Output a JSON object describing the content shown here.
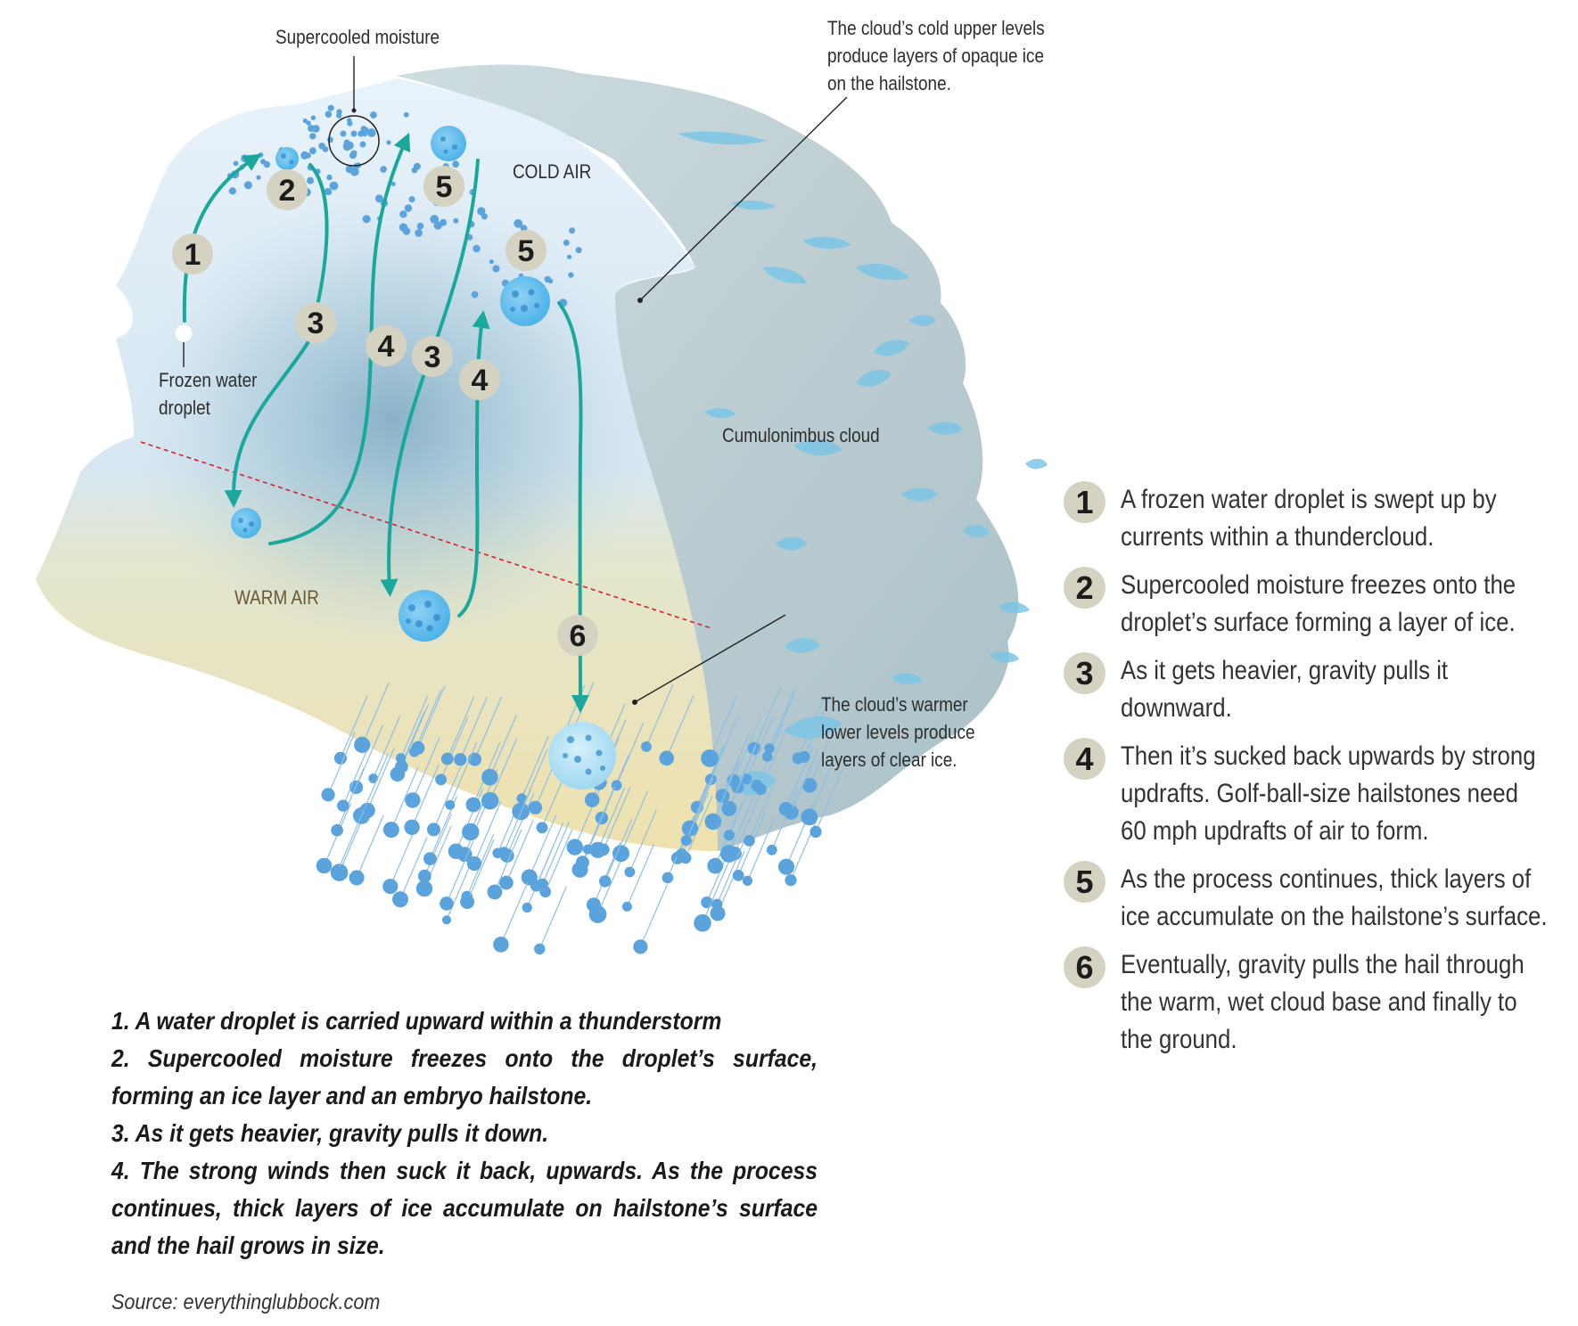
{
  "labels": {
    "supercooled": "Supercooled moisture",
    "cold_upper": [
      "The cloud’s cold upper levels",
      "produce layers of opaque ice",
      "on the hailstone."
    ],
    "cold_air": "COLD AIR",
    "frozen": [
      "Frozen water",
      "droplet"
    ],
    "cumulonimbus": "Cumulonimbus cloud",
    "warm_air": "WARM AIR",
    "warm_lower": [
      "The cloud’s warmer",
      "lower levels produce",
      "layers of clear ice."
    ]
  },
  "diagram_numbers": [
    "1",
    "2",
    "3",
    "4",
    "5",
    "6"
  ],
  "steps": [
    {
      "num": "1",
      "text": "A frozen water droplet is swept up by currents within a thundercloud."
    },
    {
      "num": "2",
      "text": "Supercooled moisture freezes onto the droplet’s surface forming a layer of ice."
    },
    {
      "num": "3",
      "text": "As it gets heavier, gravity pulls it downward."
    },
    {
      "num": "4",
      "text": "Then it’s sucked back upwards by strong updrafts. Golf-ball-size hailstones need 60 mph updrafts of air to form."
    },
    {
      "num": "5",
      "text": "As the process continues, thick layers of ice accumulate on the hailstone’s surface."
    },
    {
      "num": "6",
      "text": "Eventually, gravity pulls the hail through the warm, wet cloud base and finally to the ground."
    }
  ],
  "notes": [
    "1. A water droplet is carried upward within a thunderstorm",
    "2. Supercooled moisture freezes onto the droplet’s surface, forming an ice layer and an embryo hailstone.",
    "3. As it gets heavier, gravity pulls it down.",
    "4. The strong winds then suck it back, upwards. As the process continues, thick layers of ice accumulate on hailstone’s surface and the hail grows in size."
  ],
  "source": "Source: everythinglubbock.com",
  "colors": {
    "arrow": "#1aa89c",
    "hail": "#5ba3dc",
    "badge": "#d6d2c2",
    "cold_cloud": "#dcecf6",
    "warm_base": "#efe2b2",
    "cloud_side": "#c3d4d8",
    "dashed_line": "#d8202c"
  }
}
